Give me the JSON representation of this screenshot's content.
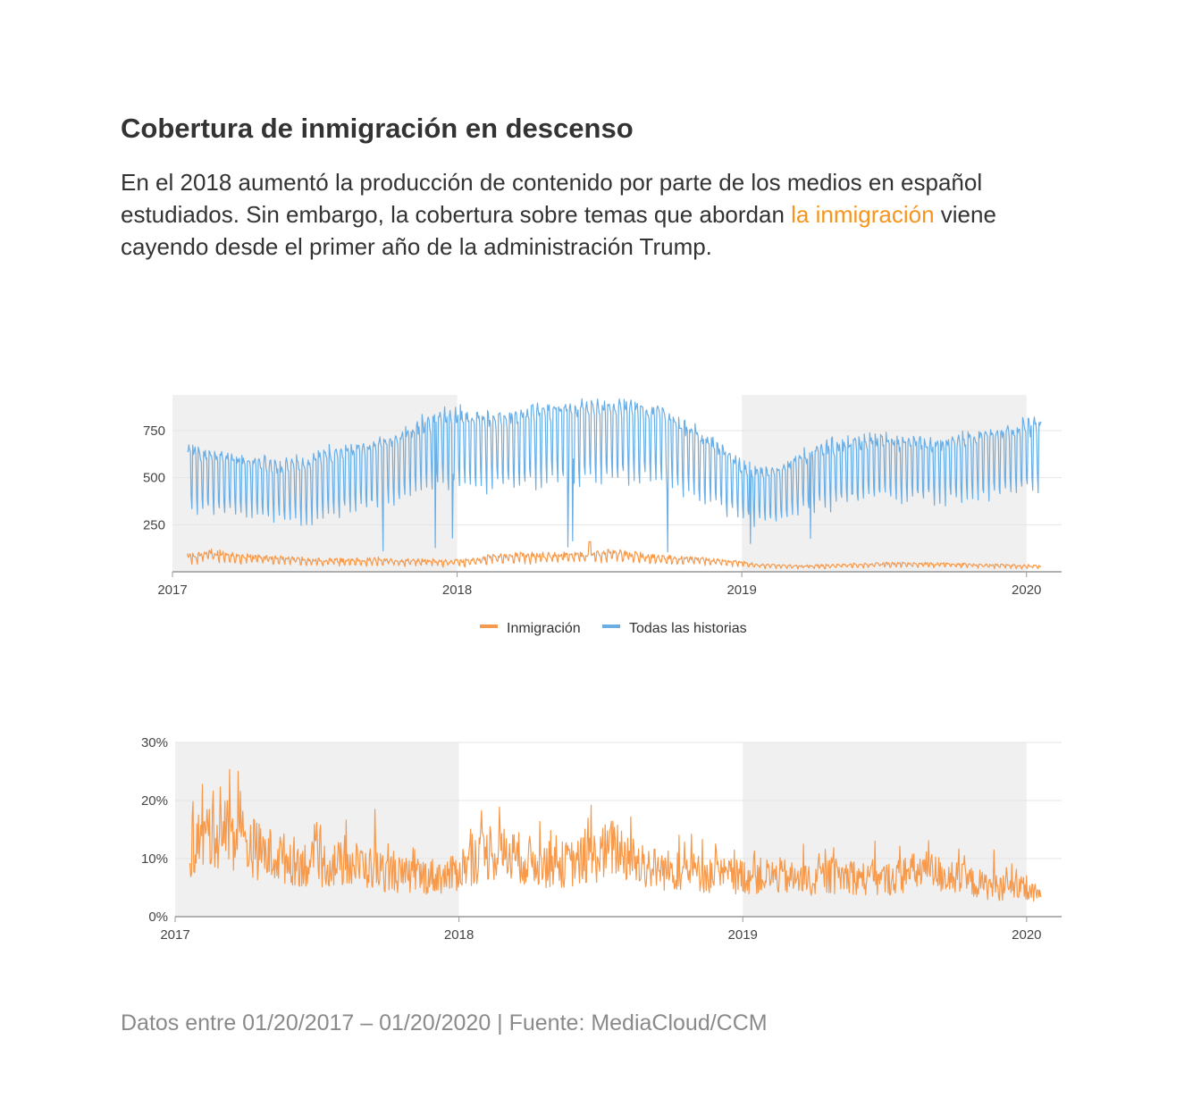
{
  "header": {
    "title": "Cobertura de inmigración en descenso",
    "subtitle_before": "En el 2018 aumentó la producción de contenido por parte de los medios en español estudiados. Sin embargo, la cobertura sobre temas que abordan ",
    "subtitle_highlight": "la inmigración",
    "subtitle_after": " viene cayendo desde el primer año de la administración Trump."
  },
  "footer": {
    "text": "Datos entre 01/20/2017 – 01/20/2020 | Fuente: MediaCloud/CCM"
  },
  "colors": {
    "immigration": "#f7994a",
    "all_stories": "#6aaee6",
    "highlight_text": "#f7941d",
    "shade": "#f0f0f0"
  },
  "chart_data": [
    {
      "type": "line",
      "x_ticks": [
        "2017",
        "2018",
        "2019",
        "2020"
      ],
      "x_range": [
        "2017-01-01",
        "2020-02-15"
      ],
      "data_range": [
        "2017-01-20",
        "2020-01-20"
      ],
      "y_ticks": [
        250,
        500,
        750
      ],
      "ylim": [
        0,
        940
      ],
      "shaded_periods": [
        [
          "2017-01-01",
          "2018-01-01"
        ],
        [
          "2019-01-01",
          "2020-01-01"
        ]
      ],
      "legend": {
        "position": "bottom"
      },
      "series": [
        {
          "name": "Inmigración",
          "key": "immigration",
          "description": "Daily immigration stories, roughly 30–130, peak near 165 mid-2018",
          "monthly_level": [
            75,
            95,
            80,
            70,
            65,
            60,
            55,
            55,
            60,
            55,
            55,
            50,
            55,
            75,
            80,
            80,
            80,
            85,
            95,
            80,
            70,
            65,
            60,
            50,
            35,
            30,
            30,
            30,
            35,
            38,
            40,
            40,
            38,
            35,
            32,
            30,
            28
          ]
        },
        {
          "name": "Todas las historias",
          "key": "all_stories",
          "description": "Daily total stories with strong weekly cycle",
          "monthly_mean": [
            500,
            480,
            470,
            450,
            430,
            440,
            480,
            500,
            520,
            560,
            620,
            660,
            650,
            640,
            660,
            680,
            690,
            690,
            700,
            690,
            680,
            600,
            540,
            460,
            400,
            420,
            480,
            520,
            540,
            550,
            550,
            540,
            540,
            560,
            580,
            600,
            620
          ],
          "monthly_amplitude": [
            170,
            160,
            160,
            160,
            160,
            170,
            180,
            180,
            180,
            190,
            200,
            200,
            200,
            200,
            210,
            210,
            210,
            220,
            220,
            210,
            200,
            190,
            180,
            160,
            150,
            150,
            160,
            170,
            170,
            170,
            170,
            170,
            170,
            180,
            190,
            190,
            190
          ]
        }
      ]
    },
    {
      "type": "line",
      "x_ticks": [
        "2017",
        "2018",
        "2019",
        "2020"
      ],
      "x_range": [
        "2017-01-01",
        "2020-02-15"
      ],
      "data_range": [
        "2017-01-20",
        "2020-01-20"
      ],
      "y_ticks": [
        "0%",
        "10%",
        "20%",
        "30%"
      ],
      "ylim": [
        0,
        30
      ],
      "shaded_periods": [
        [
          "2017-01-01",
          "2018-01-01"
        ],
        [
          "2019-01-01",
          "2020-01-01"
        ]
      ],
      "series": [
        {
          "key": "immigration_share",
          "description": "Immigration stories as share of all stories (%)",
          "monthly_level": [
            12,
            15,
            14,
            11,
            10,
            9,
            9,
            9,
            8,
            7,
            7,
            7,
            10,
            11,
            10,
            9,
            9,
            10,
            12,
            9,
            8,
            8,
            7,
            7,
            7,
            7,
            6,
            7,
            7,
            6,
            7,
            8,
            7,
            6,
            5,
            5,
            3.5
          ],
          "spikes": [
            [
              "2017-02-05",
              22.8
            ],
            [
              "2017-02-28",
              22.3
            ],
            [
              "2017-09-15",
              18.5
            ],
            [
              "2018-06-20",
              19.2
            ],
            [
              "2018-02-10",
              15.5
            ],
            [
              "2018-11-10",
              13.3
            ],
            [
              "2019-03-20",
              12.5
            ],
            [
              "2019-06-20",
              13.0
            ],
            [
              "2019-11-20",
              11.5
            ]
          ]
        }
      ]
    }
  ]
}
